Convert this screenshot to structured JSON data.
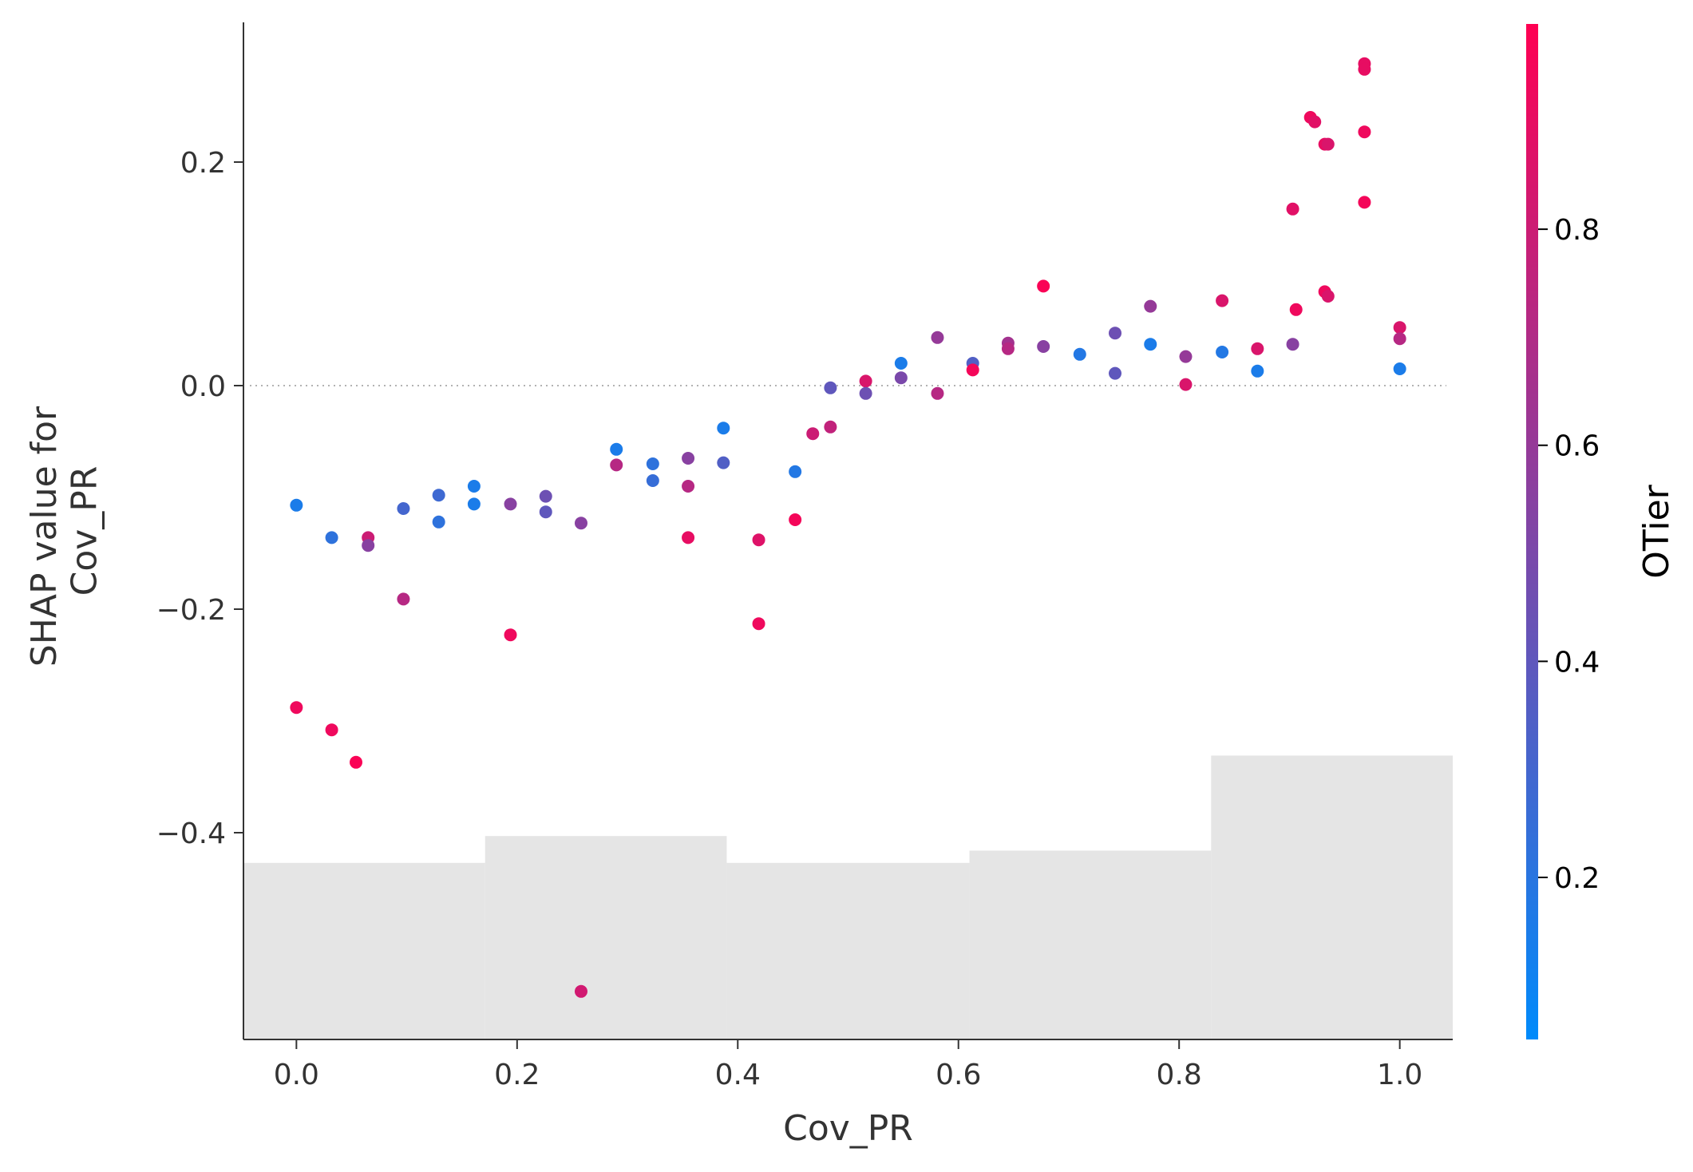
{
  "chart_data": {
    "type": "scatter",
    "xlabel": "Cov_PR",
    "ylabel_lines": [
      "SHAP value for",
      "Cov_PR"
    ],
    "xlim": [
      -0.048,
      1.048
    ],
    "ylim": [
      -0.585,
      0.325
    ],
    "xticks": [
      0.0,
      0.2,
      0.4,
      0.6,
      0.8,
      1.0
    ],
    "yticks": [
      -0.4,
      -0.2,
      0.0,
      0.2
    ],
    "ytick_labels": [
      "−0.4",
      "−0.2",
      "0.0",
      "0.2"
    ],
    "xtick_labels": [
      "0.0",
      "0.2",
      "0.4",
      "0.6",
      "0.8",
      "1.0"
    ],
    "zero_line": true,
    "grid": false,
    "histogram": {
      "color": "#e5e5e5",
      "edges": [
        -0.048,
        0.171,
        0.39,
        0.61,
        0.829,
        1.048
      ],
      "tops": [
        -0.427,
        -0.403,
        -0.427,
        -0.416,
        -0.331
      ]
    },
    "colorbar": {
      "label": "OTier",
      "range": [
        0.05,
        0.99
      ],
      "ticks": [
        0.2,
        0.4,
        0.6,
        0.8
      ],
      "tick_labels": [
        "0.2",
        "0.4",
        "0.6",
        "0.8"
      ],
      "colors": [
        "#008bfb",
        "#ff0052"
      ]
    },
    "points": [
      {
        "x": 0.0,
        "y": -0.107,
        "c": 0.15
      },
      {
        "x": 0.0,
        "y": -0.288,
        "c": 0.93
      },
      {
        "x": 0.032,
        "y": -0.136,
        "c": 0.22
      },
      {
        "x": 0.032,
        "y": -0.308,
        "c": 0.93
      },
      {
        "x": 0.054,
        "y": -0.337,
        "c": 0.97
      },
      {
        "x": 0.065,
        "y": -0.136,
        "c": 0.8
      },
      {
        "x": 0.065,
        "y": -0.143,
        "c": 0.55
      },
      {
        "x": 0.097,
        "y": -0.11,
        "c": 0.3
      },
      {
        "x": 0.097,
        "y": -0.191,
        "c": 0.72
      },
      {
        "x": 0.129,
        "y": -0.098,
        "c": 0.28
      },
      {
        "x": 0.129,
        "y": -0.122,
        "c": 0.22
      },
      {
        "x": 0.161,
        "y": -0.09,
        "c": 0.15
      },
      {
        "x": 0.161,
        "y": -0.106,
        "c": 0.15
      },
      {
        "x": 0.194,
        "y": -0.106,
        "c": 0.55
      },
      {
        "x": 0.194,
        "y": -0.223,
        "c": 0.93
      },
      {
        "x": 0.226,
        "y": -0.099,
        "c": 0.45
      },
      {
        "x": 0.226,
        "y": -0.113,
        "c": 0.4
      },
      {
        "x": 0.258,
        "y": -0.123,
        "c": 0.55
      },
      {
        "x": 0.258,
        "y": -0.542,
        "c": 0.82
      },
      {
        "x": 0.29,
        "y": -0.057,
        "c": 0.15
      },
      {
        "x": 0.29,
        "y": -0.071,
        "c": 0.72
      },
      {
        "x": 0.323,
        "y": -0.07,
        "c": 0.22
      },
      {
        "x": 0.323,
        "y": -0.085,
        "c": 0.25
      },
      {
        "x": 0.355,
        "y": -0.065,
        "c": 0.55
      },
      {
        "x": 0.355,
        "y": -0.09,
        "c": 0.72
      },
      {
        "x": 0.355,
        "y": -0.136,
        "c": 0.9
      },
      {
        "x": 0.387,
        "y": -0.038,
        "c": 0.15
      },
      {
        "x": 0.387,
        "y": -0.069,
        "c": 0.35
      },
      {
        "x": 0.419,
        "y": -0.138,
        "c": 0.87
      },
      {
        "x": 0.419,
        "y": -0.213,
        "c": 0.93
      },
      {
        "x": 0.452,
        "y": -0.077,
        "c": 0.18
      },
      {
        "x": 0.452,
        "y": -0.12,
        "c": 0.95
      },
      {
        "x": 0.468,
        "y": -0.043,
        "c": 0.8
      },
      {
        "x": 0.484,
        "y": -0.002,
        "c": 0.4
      },
      {
        "x": 0.484,
        "y": -0.037,
        "c": 0.76
      },
      {
        "x": 0.516,
        "y": 0.004,
        "c": 0.85
      },
      {
        "x": 0.516,
        "y": -0.007,
        "c": 0.45
      },
      {
        "x": 0.548,
        "y": 0.02,
        "c": 0.15
      },
      {
        "x": 0.548,
        "y": 0.007,
        "c": 0.5
      },
      {
        "x": 0.581,
        "y": 0.043,
        "c": 0.6
      },
      {
        "x": 0.581,
        "y": -0.007,
        "c": 0.72
      },
      {
        "x": 0.613,
        "y": 0.02,
        "c": 0.35
      },
      {
        "x": 0.613,
        "y": 0.014,
        "c": 0.95
      },
      {
        "x": 0.645,
        "y": 0.038,
        "c": 0.65
      },
      {
        "x": 0.645,
        "y": 0.033,
        "c": 0.72
      },
      {
        "x": 0.677,
        "y": 0.089,
        "c": 0.97
      },
      {
        "x": 0.677,
        "y": 0.035,
        "c": 0.55
      },
      {
        "x": 0.71,
        "y": 0.028,
        "c": 0.18
      },
      {
        "x": 0.742,
        "y": 0.047,
        "c": 0.45
      },
      {
        "x": 0.742,
        "y": 0.011,
        "c": 0.4
      },
      {
        "x": 0.774,
        "y": 0.071,
        "c": 0.6
      },
      {
        "x": 0.774,
        "y": 0.037,
        "c": 0.15
      },
      {
        "x": 0.806,
        "y": 0.026,
        "c": 0.6
      },
      {
        "x": 0.806,
        "y": 0.001,
        "c": 0.85
      },
      {
        "x": 0.839,
        "y": 0.076,
        "c": 0.85
      },
      {
        "x": 0.839,
        "y": 0.03,
        "c": 0.18
      },
      {
        "x": 0.871,
        "y": 0.033,
        "c": 0.85
      },
      {
        "x": 0.871,
        "y": 0.013,
        "c": 0.15
      },
      {
        "x": 0.903,
        "y": 0.158,
        "c": 0.88
      },
      {
        "x": 0.903,
        "y": 0.037,
        "c": 0.55
      },
      {
        "x": 0.906,
        "y": 0.068,
        "c": 0.93
      },
      {
        "x": 0.919,
        "y": 0.24,
        "c": 0.93
      },
      {
        "x": 0.923,
        "y": 0.236,
        "c": 0.88
      },
      {
        "x": 0.932,
        "y": 0.216,
        "c": 0.9
      },
      {
        "x": 0.932,
        "y": 0.084,
        "c": 0.93
      },
      {
        "x": 0.935,
        "y": 0.08,
        "c": 0.85
      },
      {
        "x": 0.935,
        "y": 0.216,
        "c": 0.85
      },
      {
        "x": 0.968,
        "y": 0.288,
        "c": 0.9
      },
      {
        "x": 0.968,
        "y": 0.283,
        "c": 0.9
      },
      {
        "x": 0.968,
        "y": 0.227,
        "c": 0.93
      },
      {
        "x": 0.968,
        "y": 0.164,
        "c": 0.95
      },
      {
        "x": 1.0,
        "y": 0.052,
        "c": 0.85
      },
      {
        "x": 1.0,
        "y": 0.042,
        "c": 0.72
      },
      {
        "x": 1.0,
        "y": 0.015,
        "c": 0.15
      }
    ]
  }
}
